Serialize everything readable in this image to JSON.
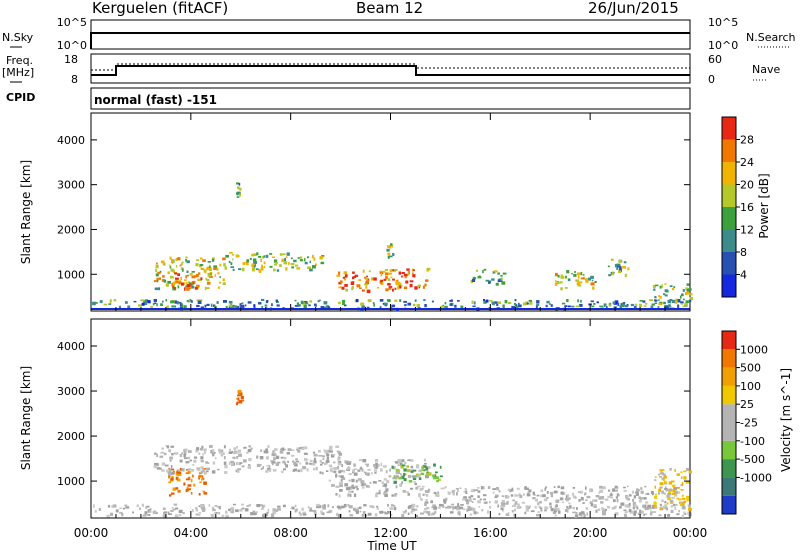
{
  "header": {
    "station": "Kerguelen (fitACF)",
    "beam": "Beam 12",
    "date": "26/Jun/2015"
  },
  "top_panels": {
    "nsky": {
      "left_label": "N.Sky",
      "left_ticks": [
        "10^5",
        "10^0"
      ],
      "right_label": "N.Search",
      "right_ticks": [
        "10^5",
        "10^0"
      ]
    },
    "freq": {
      "left_label_1": "Freq.",
      "left_label_2": "[MHz]",
      "left_ticks": [
        "18",
        "8"
      ],
      "right_label": "Nave",
      "right_ticks": [
        "60",
        "0"
      ]
    },
    "cpid": {
      "label": "CPID",
      "mode": "normal (fast) -151"
    }
  },
  "x_axis": {
    "title": "Time UT",
    "ticks": [
      "00:00",
      "04:00",
      "08:00",
      "12:00",
      "16:00",
      "20:00",
      "00:00"
    ]
  },
  "chart_data": [
    {
      "type": "heatmap",
      "panel": "power",
      "ylabel": "Slant Range [km]",
      "yticks": [
        1000,
        2000,
        3000,
        4000
      ],
      "ylim": [
        180,
        4600
      ],
      "xlim_hours": [
        0,
        24
      ],
      "colorbar": {
        "label": "Power [dB]",
        "ticks": [
          "4",
          "8",
          "12",
          "16",
          "20",
          "24",
          "28"
        ],
        "colors": [
          "#1428e0",
          "#2850b0",
          "#3c8c8c",
          "#3ca03c",
          "#b4c828",
          "#f0b400",
          "#f07800",
          "#e62814"
        ]
      },
      "echo_regions": [
        {
          "t": [
            0.0,
            24.0
          ],
          "r": [
            250,
            450
          ],
          "level": 0.35
        },
        {
          "t": [
            2.5,
            5.3
          ],
          "r": [
            700,
            1400
          ],
          "level": 0.6
        },
        {
          "t": [
            3.2,
            4.4
          ],
          "r": [
            700,
            1100
          ],
          "level": 0.85
        },
        {
          "t": [
            5.3,
            9.3
          ],
          "r": [
            1100,
            1500
          ],
          "level": 0.5
        },
        {
          "t": [
            5.8,
            6.0
          ],
          "r": [
            2700,
            3100
          ],
          "level": 0.4
        },
        {
          "t": [
            9.8,
            13.5
          ],
          "r": [
            650,
            1150
          ],
          "level": 0.8
        },
        {
          "t": [
            11.8,
            12.1
          ],
          "r": [
            1400,
            1700
          ],
          "level": 0.5
        },
        {
          "t": [
            15.2,
            16.5
          ],
          "r": [
            800,
            1150
          ],
          "level": 0.4
        },
        {
          "t": [
            18.5,
            20.2
          ],
          "r": [
            700,
            1100
          ],
          "level": 0.55
        },
        {
          "t": [
            20.5,
            21.5
          ],
          "r": [
            1000,
            1350
          ],
          "level": 0.4
        },
        {
          "t": [
            22.5,
            24.0
          ],
          "r": [
            300,
            800
          ],
          "level": 0.45
        }
      ]
    },
    {
      "type": "heatmap",
      "panel": "velocity",
      "ylabel": "Slant Range [km]",
      "yticks": [
        1000,
        2000,
        3000,
        4000
      ],
      "ylim": [
        180,
        4600
      ],
      "xlim_hours": [
        0,
        24
      ],
      "colorbar": {
        "label": "Velocity [m s^-1]",
        "ticks": [
          "1000",
          "500",
          "100",
          "25",
          "-25",
          "-100",
          "-500",
          "-1000"
        ],
        "colors": [
          "#1e3cc8",
          "#3c7878",
          "#3c9650",
          "#78c83c",
          "#b4b4b4",
          "#b4b4b4",
          "#f0c800",
          "#f0a000",
          "#f07800",
          "#e62814"
        ]
      },
      "echo_regions": [
        {
          "t": [
            0.0,
            24.0
          ],
          "r": [
            250,
            500
          ],
          "level": "grey"
        },
        {
          "t": [
            3.0,
            4.6
          ],
          "r": [
            700,
            1300
          ],
          "level": "orange"
        },
        {
          "t": [
            2.5,
            10.0
          ],
          "r": [
            1200,
            1800
          ],
          "level": "grey"
        },
        {
          "t": [
            5.8,
            6.0
          ],
          "r": [
            2700,
            3100
          ],
          "level": "orange"
        },
        {
          "t": [
            9.5,
            13.5
          ],
          "r": [
            700,
            1500
          ],
          "level": "grey"
        },
        {
          "t": [
            12.0,
            14.0
          ],
          "r": [
            1000,
            1400
          ],
          "level": "green"
        },
        {
          "t": [
            13.0,
            23.5
          ],
          "r": [
            400,
            900
          ],
          "level": "grey"
        },
        {
          "t": [
            22.5,
            24.0
          ],
          "r": [
            400,
            1300
          ],
          "level": "yellow"
        }
      ]
    }
  ]
}
